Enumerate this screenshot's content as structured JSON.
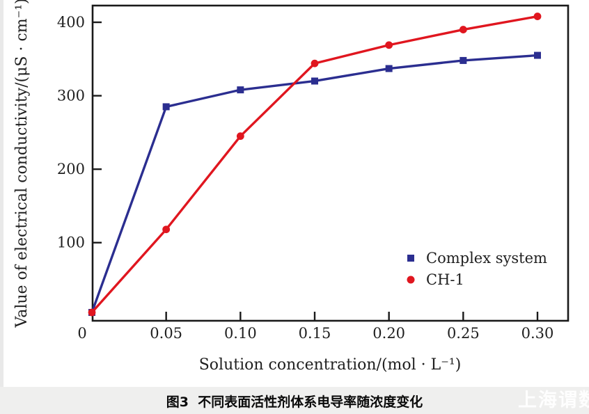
{
  "figure": {
    "caption": "图3  不同表面活性剂体系电导率随浓度变化",
    "watermark": "上海谓数"
  },
  "chart_data": {
    "type": "line",
    "title": "",
    "xlabel": "Solution concentration/(mol · L⁻¹)",
    "ylabel": "Value of electrical conductivity/(μS · cm⁻¹)",
    "x": [
      0,
      0.05,
      0.1,
      0.15,
      0.2,
      0.25,
      0.3
    ],
    "x_tick_labels": [
      "0",
      "0.05",
      "0.10",
      "0.15",
      "0.20",
      "0.25",
      "0.30"
    ],
    "y_ticks": [
      100,
      200,
      300,
      400
    ],
    "xlim": [
      0,
      0.32
    ],
    "ylim": [
      -6,
      423
    ],
    "grid": false,
    "legend_position": "inside-lower-right",
    "axis_color": "#1a1a1a",
    "series": [
      {
        "name": "Complex system",
        "color": "#2b2e90",
        "marker": "square",
        "values": [
          5,
          285,
          308,
          320,
          337,
          348,
          355
        ]
      },
      {
        "name": "CH-1",
        "color": "#e0161f",
        "marker": "circle",
        "values": [
          5,
          118,
          245,
          344,
          369,
          390,
          408
        ]
      }
    ]
  }
}
